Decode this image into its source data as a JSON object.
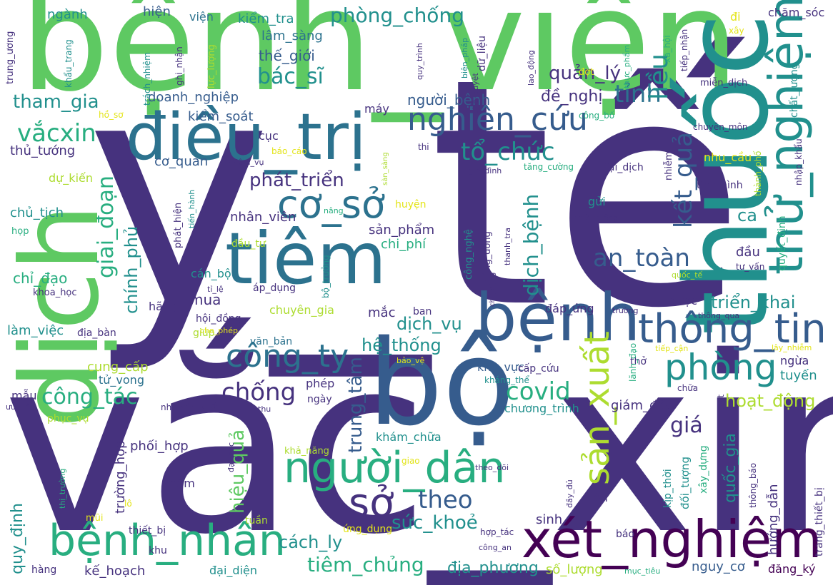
{
  "palette": {
    "purple": "#46327e",
    "indigo": "#3b528b",
    "blue": "#365c8d",
    "steel": "#2c728e",
    "teal": "#21908d",
    "green": "#28ae80",
    "lime": "#5ec962",
    "yellowgreen": "#addc30",
    "yellow": "#e3e418",
    "darkpurple": "#440154"
  },
  "words": [
    {
      "text": "y_tế",
      "color": "purple"
    },
    {
      "text": "vắc_xin",
      "color": "purple"
    },
    {
      "text": "bệnh_viện",
      "color": "lime"
    },
    {
      "text": "dịch",
      "color": "lime"
    },
    {
      "text": "thuốc",
      "color": "teal"
    },
    {
      "text": "bộ",
      "color": "blue"
    },
    {
      "text": "điều_trị",
      "color": "steel"
    },
    {
      "text": "tiêm",
      "color": "steel"
    },
    {
      "text": "bệnh",
      "color": "blue"
    },
    {
      "text": "thử_nghiệm",
      "color": "teal"
    },
    {
      "text": "xét_nghiệm",
      "color": "darkpurple"
    },
    {
      "text": "bệnh_nhân",
      "color": "green"
    },
    {
      "text": "người_dân",
      "color": "green"
    },
    {
      "text": "cơ_sở",
      "color": "steel"
    },
    {
      "text": "thông_tin",
      "color": "blue"
    },
    {
      "text": "phòng",
      "color": "teal"
    },
    {
      "text": "công_ty",
      "color": "steel"
    },
    {
      "text": "nghiên_cứu",
      "color": "blue"
    },
    {
      "text": "sở",
      "color": "purple"
    },
    {
      "text": "sản_xuất",
      "color": "yellowgreen"
    },
    {
      "text": "vắcxin",
      "color": "green"
    },
    {
      "text": "covid",
      "color": "green"
    },
    {
      "text": "chống",
      "color": "purple"
    },
    {
      "text": "an_toàn",
      "color": "blue"
    },
    {
      "text": "kết_quả",
      "color": "blue"
    },
    {
      "text": "tỉnh",
      "color": "steel"
    },
    {
      "text": "tổ_chức",
      "color": "teal"
    },
    {
      "text": "liều",
      "color": "teal"
    },
    {
      "text": "theo",
      "color": "blue"
    },
    {
      "text": "giai_đoạn",
      "color": "green"
    },
    {
      "text": "dịch_bệnh",
      "color": "teal"
    },
    {
      "text": "công_tác",
      "color": "green"
    },
    {
      "text": "hoạt_động",
      "color": "yellowgreen"
    },
    {
      "text": "tiêm_chủng",
      "color": "green"
    },
    {
      "text": "sức_khoẻ",
      "color": "teal"
    },
    {
      "text": "bác_sĩ",
      "color": "teal"
    },
    {
      "text": "phòng_chống",
      "color": "teal"
    },
    {
      "text": "quản_lý",
      "color": "purple"
    },
    {
      "text": "tham_gia",
      "color": "teal"
    },
    {
      "text": "phát_triển",
      "color": "purple"
    },
    {
      "text": "triển_khai",
      "color": "teal"
    },
    {
      "text": "cách_ly",
      "color": "teal"
    },
    {
      "text": "hệ_thống",
      "color": "teal"
    },
    {
      "text": "dịch_vụ",
      "color": "teal"
    },
    {
      "text": "trung_tâm",
      "color": "blue"
    },
    {
      "text": "giá",
      "color": "purple"
    },
    {
      "text": "hiệu_quả",
      "color": "lime"
    },
    {
      "text": "chính_phủ",
      "color": "teal"
    },
    {
      "text": "quốc_gia",
      "color": "teal"
    },
    {
      "text": "thủ_tướng",
      "color": "purple"
    },
    {
      "text": "cơ_quan",
      "color": "blue"
    },
    {
      "text": "doanh_nghiệp",
      "color": "blue"
    },
    {
      "text": "người_bệnh",
      "color": "blue"
    },
    {
      "text": "đề_nghị",
      "color": "purple"
    },
    {
      "text": "kiểm_soát",
      "color": "blue"
    },
    {
      "text": "thế_giới",
      "color": "blue"
    },
    {
      "text": "lâm_sàng",
      "color": "steel"
    },
    {
      "text": "kiểm_tra",
      "color": "teal"
    },
    {
      "text": "ngành",
      "color": "teal"
    },
    {
      "text": "hiện",
      "color": "blue"
    },
    {
      "text": "viện",
      "color": "steel"
    },
    {
      "text": "chăm_sóc",
      "color": "purple"
    },
    {
      "text": "địa_phương",
      "color": "teal"
    },
    {
      "text": "nguy_cơ",
      "color": "blue"
    },
    {
      "text": "kế_hoạch",
      "color": "purple"
    },
    {
      "text": "đại_diện",
      "color": "teal"
    },
    {
      "text": "số_lượng",
      "color": "yellowgreen"
    },
    {
      "text": "đăng_ký",
      "color": "darkpurple"
    },
    {
      "text": "quy_định",
      "color": "teal"
    },
    {
      "text": "trường_hợp",
      "color": "purple"
    },
    {
      "text": "phối_hợp",
      "color": "purple"
    },
    {
      "text": "cung_cấp",
      "color": "yellowgreen"
    },
    {
      "text": "tử_vong",
      "color": "steel"
    },
    {
      "text": "làm_việc",
      "color": "teal"
    },
    {
      "text": "chỉ_đạo",
      "color": "green"
    },
    {
      "text": "chủ_tịch",
      "color": "teal"
    },
    {
      "text": "dự_kiến",
      "color": "yellowgreen"
    },
    {
      "text": "sản_phẩm",
      "color": "purple"
    },
    {
      "text": "nhân_viên",
      "color": "purple"
    },
    {
      "text": "chi_phí",
      "color": "green"
    },
    {
      "text": "cán_bộ",
      "color": "teal"
    },
    {
      "text": "áp_dụng",
      "color": "purple"
    },
    {
      "text": "chuyên_gia",
      "color": "yellowgreen"
    },
    {
      "text": "văn_bản",
      "color": "steel"
    },
    {
      "text": "giám_đốc",
      "color": "purple"
    },
    {
      "text": "chương_trình",
      "color": "teal"
    },
    {
      "text": "khu_vực",
      "color": "blue"
    },
    {
      "text": "khám_chữa",
      "color": "teal"
    },
    {
      "text": "hướng_dẫn",
      "color": "purple"
    },
    {
      "text": "đối_tượng",
      "color": "teal"
    },
    {
      "text": "tuyến",
      "color": "teal"
    },
    {
      "text": "ngừa",
      "color": "purple"
    },
    {
      "text": "mua",
      "color": "purple"
    },
    {
      "text": "ca",
      "color": "teal"
    },
    {
      "text": "đầu",
      "color": "purple"
    },
    {
      "text": "gửi",
      "color": "teal"
    },
    {
      "text": "dược",
      "color": "purple"
    },
    {
      "text": "khám",
      "color": "purple"
    },
    {
      "text": "sinh",
      "color": "purple"
    },
    {
      "text": "tiền",
      "color": "purple"
    },
    {
      "text": "mắc",
      "color": "purple"
    },
    {
      "text": "máy",
      "color": "purple"
    },
    {
      "text": "cục",
      "color": "purple"
    },
    {
      "text": "phép",
      "color": "purple"
    },
    {
      "text": "ngày",
      "color": "purple"
    },
    {
      "text": "mẫu",
      "color": "purple"
    },
    {
      "text": "giúp",
      "color": "yellowgreen"
    },
    {
      "text": "hãng",
      "color": "purple"
    },
    {
      "text": "ban",
      "color": "purple"
    },
    {
      "text": "khu",
      "color": "purple"
    },
    {
      "text": "hàng",
      "color": "purple"
    },
    {
      "text": "tuần",
      "color": "yellowgreen"
    },
    {
      "text": "báo",
      "color": "purple"
    },
    {
      "text": "thở",
      "color": "purple"
    },
    {
      "text": "chữa",
      "color": "purple"
    },
    {
      "text": "test",
      "color": "purple"
    },
    {
      "text": "đi",
      "color": "yellow"
    },
    {
      "text": "xây",
      "color": "yellow"
    },
    {
      "text": "đợt",
      "color": "yellow"
    },
    {
      "text": "thu",
      "color": "purple"
    },
    {
      "text": "mũi",
      "color": "yellow"
    },
    {
      "text": "lô",
      "color": "yellow"
    },
    {
      "text": "giao",
      "color": "yellow"
    },
    {
      "text": "nâng",
      "color": "green"
    },
    {
      "text": "họp",
      "color": "green"
    },
    {
      "text": "thi",
      "color": "purple"
    },
    {
      "text": "huyện",
      "color": "yellow"
    },
    {
      "text": "trường",
      "color": "purple"
    },
    {
      "text": "đáp_ứng",
      "color": "purple"
    },
    {
      "text": "cấp_cứu",
      "color": "purple"
    },
    {
      "text": "kháng_thể",
      "color": "teal"
    },
    {
      "text": "lãnh_đạo",
      "color": "green"
    },
    {
      "text": "nhà_sản_xuất",
      "color": "purple"
    },
    {
      "text": "ưu_tiên",
      "color": "purple"
    },
    {
      "text": "phục_vụ",
      "color": "yellowgreen"
    },
    {
      "text": "khả_năng",
      "color": "yellowgreen"
    },
    {
      "text": "ứng_dụng",
      "color": "yellow"
    },
    {
      "text": "thiết_bị",
      "color": "purple"
    },
    {
      "text": "hợp_tác",
      "color": "purple"
    },
    {
      "text": "công_an",
      "color": "purple"
    },
    {
      "text": "mục_tiêu",
      "color": "green"
    },
    {
      "text": "báo_cáo",
      "color": "yellow"
    },
    {
      "text": "nhiệm_vụ",
      "color": "purple"
    },
    {
      "text": "gia_đình",
      "color": "purple"
    },
    {
      "text": "đại_dịch",
      "color": "purple"
    },
    {
      "text": "tăng_cường",
      "color": "green"
    },
    {
      "text": "nhu_cầu",
      "color": "yellow"
    },
    {
      "text": "tình_hình",
      "color": "purple"
    },
    {
      "text": "thứ_trưởng",
      "color": "purple"
    },
    {
      "text": "tư_vấn",
      "color": "purple"
    },
    {
      "text": "quốc_tế",
      "color": "yellowgreen"
    },
    {
      "text": "lây_nhiễm",
      "color": "yellow"
    },
    {
      "text": "tiếp_cận",
      "color": "yellow"
    },
    {
      "text": "thông_qua",
      "color": "purple"
    },
    {
      "text": "cho_phép",
      "color": "yellow"
    },
    {
      "text": "hội_đồng",
      "color": "purple"
    },
    {
      "text": "bảo_vệ",
      "color": "yellow"
    },
    {
      "text": "đầu_tư",
      "color": "yellowgreen"
    },
    {
      "text": "tỉ_lệ",
      "color": "purple"
    },
    {
      "text": "khoa_học",
      "color": "purple"
    },
    {
      "text": "địa_bàn",
      "color": "purple"
    },
    {
      "text": "hồ_sơ",
      "color": "yellow"
    },
    {
      "text": "công_bố",
      "color": "green"
    },
    {
      "text": "chuyên_môn",
      "color": "purple"
    },
    {
      "text": "miễn_dịch",
      "color": "purple"
    },
    {
      "text": "trung_ương",
      "color": "purple"
    },
    {
      "text": "khẩu_trang",
      "color": "teal"
    },
    {
      "text": "trách_nhiệm",
      "color": "teal"
    },
    {
      "text": "ghi_nhận",
      "color": "purple"
    },
    {
      "text": "lực_lượng",
      "color": "yellowgreen"
    },
    {
      "text": "quy_trình",
      "color": "purple"
    },
    {
      "text": "biện_pháp",
      "color": "teal"
    },
    {
      "text": "dữ_liệu",
      "color": "purple"
    },
    {
      "text": "lao_động",
      "color": "purple"
    },
    {
      "text": "thực_phẩm",
      "color": "green"
    },
    {
      "text": "xã_hội",
      "color": "green"
    },
    {
      "text": "tiếp_nhận",
      "color": "purple"
    },
    {
      "text": "chất_lượng",
      "color": "teal"
    },
    {
      "text": "nhập_khẩu",
      "color": "purple"
    },
    {
      "text": "quyết_định",
      "color": "green"
    },
    {
      "text": "thành_phố",
      "color": "yellowgreen"
    },
    {
      "text": "nhiễm",
      "color": "purple"
    },
    {
      "text": "phê_duyệt",
      "color": "purple"
    },
    {
      "text": "phát_hiện",
      "color": "purple"
    },
    {
      "text": "tiến_hành",
      "color": "teal"
    },
    {
      "text": "bộ_trưởng",
      "color": "teal"
    },
    {
      "text": "sàn_sàng",
      "color": "yellowgreen"
    },
    {
      "text": "công_nghệ",
      "color": "teal"
    },
    {
      "text": "cộng_đồng",
      "color": "purple"
    },
    {
      "text": "thanh_tra",
      "color": "purple"
    },
    {
      "text": "chủ_động",
      "color": "purple"
    },
    {
      "text": "đại_học",
      "color": "purple"
    },
    {
      "text": "thị_trường",
      "color": "green"
    },
    {
      "text": "theo_dõi",
      "color": "purple"
    },
    {
      "text": "đầy_đủ",
      "color": "purple"
    },
    {
      "text": "kịp_thời",
      "color": "teal"
    },
    {
      "text": "xây_dựng",
      "color": "green"
    },
    {
      "text": "thông_báo",
      "color": "purple"
    },
    {
      "text": "trang_thiết_bị",
      "color": "purple"
    }
  ]
}
